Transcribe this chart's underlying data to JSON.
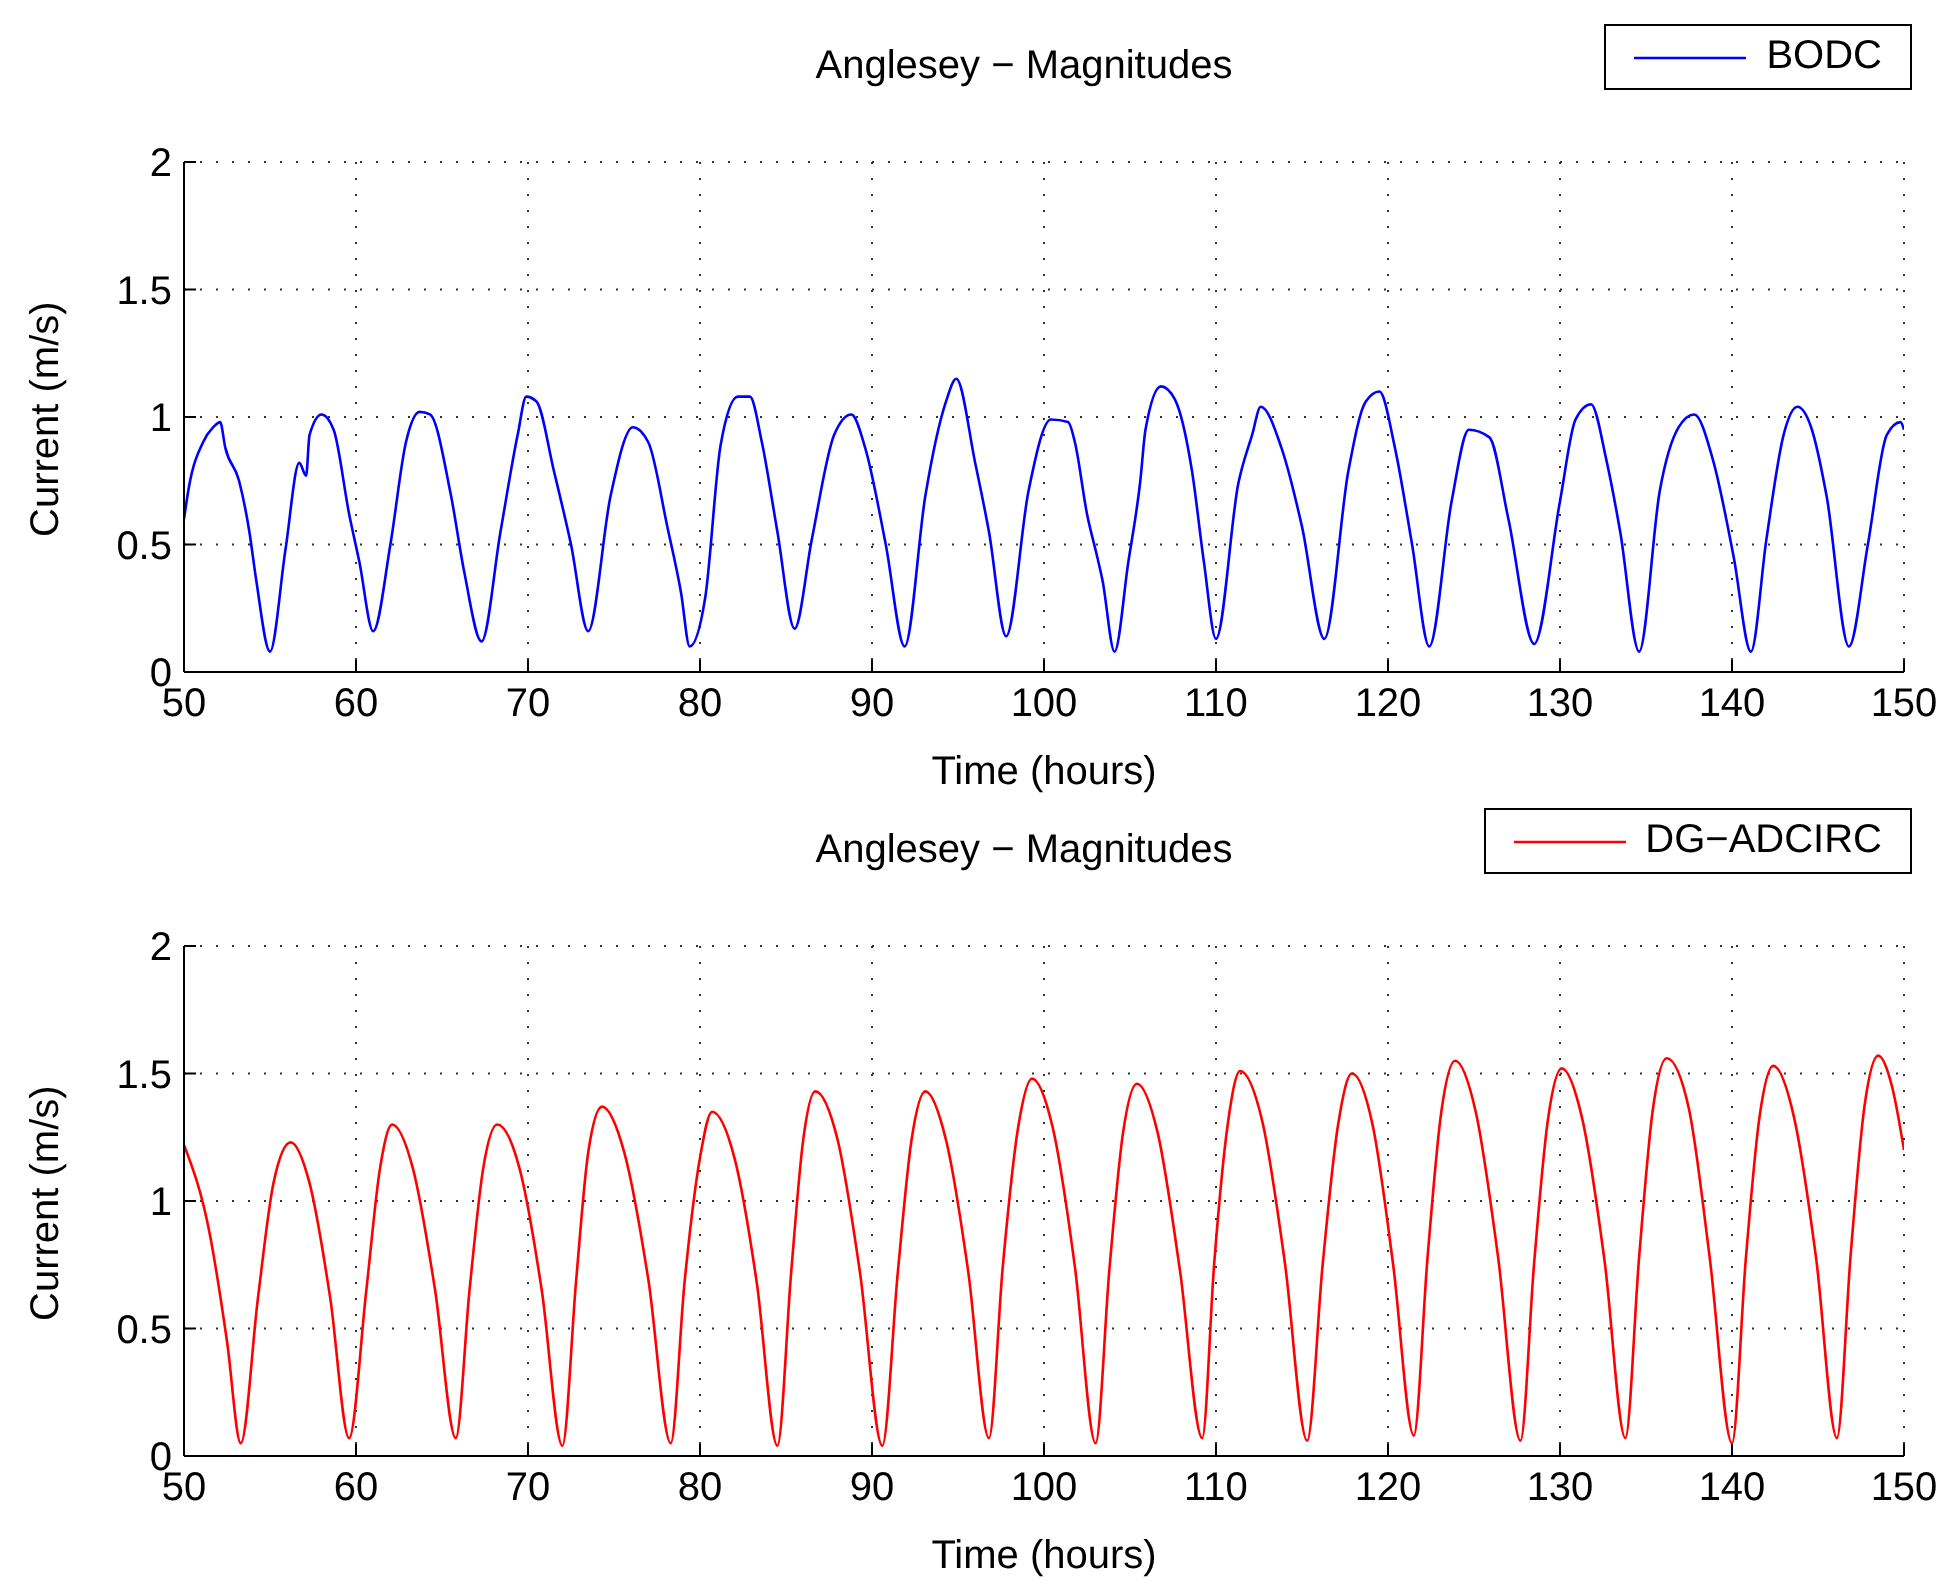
{
  "chart_data": [
    {
      "type": "line",
      "title": "Anglesey − Magnitudes",
      "xlabel": "Time (hours)",
      "ylabel": "Current (m/s)",
      "xlim": [
        50,
        150
      ],
      "ylim": [
        0,
        2
      ],
      "xticks": [
        50,
        60,
        70,
        80,
        90,
        100,
        110,
        120,
        130,
        140,
        150
      ],
      "yticks": [
        0,
        0.5,
        1,
        1.5,
        2
      ],
      "grid": true,
      "legend": "top right",
      "x": [
        50,
        50.3,
        51.1,
        51.7,
        52.1,
        52.4,
        53.2,
        53.8,
        54.2,
        55.0,
        55.9,
        56.7,
        57.1,
        57.3,
        58.0,
        58.7,
        59.6,
        60.2,
        61.0,
        62.0,
        62.9,
        63.7,
        64.3,
        65.5,
        66.3,
        67.3,
        68.4,
        69.4,
        69.9,
        70.5,
        71.5,
        72.5,
        73.5,
        74.8,
        76.1,
        77.0,
        78.1,
        78.9,
        79.4,
        80.3,
        81.2,
        82.2,
        82.9,
        83.6,
        84.5,
        85.5,
        86.5,
        87.8,
        88.8,
        89.6,
        90.8,
        91.9,
        93.1,
        94.3,
        94.9,
        96.0,
        96.8,
        97.8,
        99.1,
        100.4,
        101.4,
        101.8,
        102.5,
        103.1,
        103.4,
        104.1,
        104.9,
        105.6,
        105.9,
        106.8,
        107.6,
        108.6,
        109.3,
        110.0,
        111.3,
        112.1,
        112.6,
        113.8,
        115.0,
        116.3,
        117.7,
        118.7,
        119.5,
        120.4,
        121.4,
        122.4,
        123.7,
        124.7,
        125.9,
        127.0,
        128.5,
        130.0,
        130.9,
        131.8,
        132.7,
        133.5,
        134.6,
        135.8,
        136.9,
        137.8,
        138.9,
        140.1,
        141.1,
        142.0,
        143.0,
        143.8,
        144.6,
        145.5,
        146.8,
        147.9,
        149.0,
        149.8,
        150
      ],
      "series": [
        {
          "name": "BODC",
          "color": "#0000ff",
          "values": [
            0.6,
            0.73,
            0.9,
            0.96,
            0.98,
            0.88,
            0.75,
            0.55,
            0.36,
            0.08,
            0.48,
            0.82,
            0.77,
            0.93,
            1.01,
            0.95,
            0.62,
            0.43,
            0.16,
            0.5,
            0.9,
            1.02,
            1.01,
            0.7,
            0.39,
            0.12,
            0.55,
            0.93,
            1.08,
            1.06,
            0.79,
            0.5,
            0.16,
            0.69,
            0.96,
            0.9,
            0.57,
            0.31,
            0.1,
            0.29,
            0.89,
            1.08,
            1.08,
            0.9,
            0.55,
            0.17,
            0.52,
            0.93,
            1.01,
            0.88,
            0.5,
            0.1,
            0.69,
            1.06,
            1.15,
            0.82,
            0.55,
            0.14,
            0.71,
            0.99,
            0.98,
            0.9,
            0.62,
            0.45,
            0.36,
            0.08,
            0.43,
            0.75,
            0.95,
            1.12,
            1.07,
            0.79,
            0.43,
            0.13,
            0.74,
            0.93,
            1.04,
            0.88,
            0.57,
            0.13,
            0.79,
            1.06,
            1.1,
            0.88,
            0.5,
            0.1,
            0.67,
            0.95,
            0.92,
            0.6,
            0.11,
            0.67,
            0.99,
            1.05,
            0.83,
            0.55,
            0.08,
            0.71,
            0.96,
            1.01,
            0.83,
            0.45,
            0.08,
            0.52,
            0.93,
            1.04,
            0.96,
            0.69,
            0.1,
            0.5,
            0.93,
            0.98,
            0.95
          ]
        }
      ]
    },
    {
      "type": "line",
      "title": "Anglesey − Magnitudes",
      "xlabel": "Time (hours)",
      "ylabel": "Current (m/s)",
      "xlim": [
        50,
        150
      ],
      "ylim": [
        0,
        2
      ],
      "xticks": [
        50,
        60,
        70,
        80,
        90,
        100,
        110,
        120,
        130,
        140,
        150
      ],
      "yticks": [
        0,
        0.5,
        1,
        1.5,
        2
      ],
      "grid": true,
      "legend": "top right",
      "x": [
        50,
        51.5,
        52.5,
        53.3,
        54.3,
        55.2,
        56.2,
        57.3,
        58.5,
        59.6,
        60.6,
        61.4,
        62.1,
        63.3,
        64.6,
        65.8,
        66.6,
        67.4,
        68.2,
        69.5,
        70.8,
        72,
        72.8,
        73.5,
        74.3,
        75.6,
        77,
        78.3,
        79.1,
        80,
        80.7,
        82,
        83.3,
        84.5,
        85.3,
        86,
        86.7,
        88,
        89.3,
        90.6,
        91.5,
        92.3,
        93.1,
        94.3,
        95.6,
        96.8,
        97.6,
        98.5,
        99.3,
        100.5,
        101.8,
        103,
        103.8,
        104.6,
        105.4,
        106.6,
        107.9,
        109.2,
        109.9,
        110.7,
        111.4,
        112.7,
        114,
        115.3,
        116.2,
        117.1,
        117.9,
        119.1,
        120.3,
        121.5,
        122.3,
        123.1,
        123.9,
        125.1,
        126.4,
        127.7,
        128.5,
        129.3,
        130.1,
        131.3,
        132.6,
        133.8,
        134.6,
        135.4,
        136.2,
        137.5,
        138.7,
        140,
        140.8,
        141.6,
        142.4,
        143.6,
        144.9,
        146.1,
        146.9,
        147.7,
        148.5,
        149.3,
        150
      ],
      "series": [
        {
          "name": "DG−ADCIRC",
          "color": "#ff0000",
          "values": [
            1.22,
            0.87,
            0.45,
            0.05,
            0.62,
            1.07,
            1.23,
            1.07,
            0.62,
            0.07,
            0.65,
            1.13,
            1.3,
            1.13,
            0.65,
            0.07,
            0.65,
            1.13,
            1.3,
            1.13,
            0.65,
            0.04,
            0.69,
            1.19,
            1.37,
            1.19,
            0.69,
            0.05,
            0.68,
            1.17,
            1.35,
            1.17,
            0.68,
            0.04,
            0.72,
            1.24,
            1.43,
            1.24,
            0.72,
            0.04,
            0.72,
            1.24,
            1.43,
            1.24,
            0.72,
            0.07,
            0.74,
            1.29,
            1.48,
            1.29,
            0.74,
            0.05,
            0.73,
            1.27,
            1.46,
            1.27,
            0.73,
            0.07,
            0.76,
            1.31,
            1.51,
            1.31,
            0.76,
            0.06,
            0.75,
            1.3,
            1.5,
            1.3,
            0.75,
            0.08,
            0.78,
            1.35,
            1.55,
            1.35,
            0.78,
            0.06,
            0.76,
            1.32,
            1.52,
            1.32,
            0.76,
            0.07,
            0.78,
            1.36,
            1.56,
            1.36,
            0.78,
            0.05,
            0.77,
            1.33,
            1.53,
            1.33,
            0.77,
            0.07,
            0.79,
            1.37,
            1.57,
            1.45,
            1.2
          ]
        }
      ]
    }
  ]
}
